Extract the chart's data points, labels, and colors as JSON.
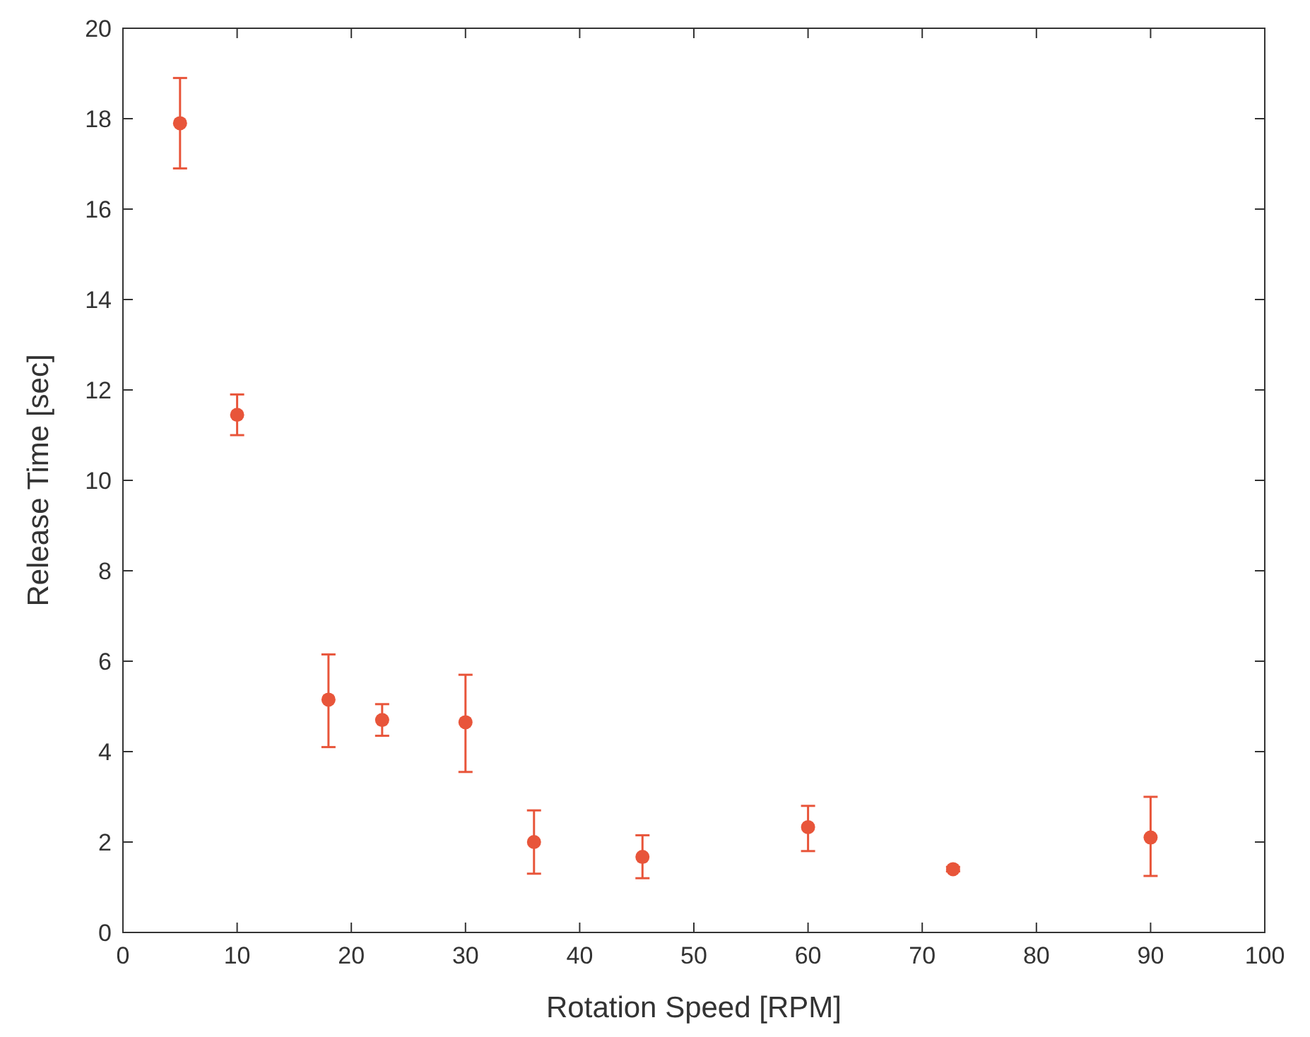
{
  "chart_data": {
    "type": "scatter",
    "xlabel": "Rotation Speed [RPM]",
    "ylabel": "Release Time [sec]",
    "x": [
      5,
      10,
      18,
      22.7,
      30,
      36,
      45.5,
      60,
      72.7,
      90
    ],
    "series": [
      {
        "color": "#e8553a",
        "values": [
          17.9,
          11.45,
          5.15,
          4.7,
          4.65,
          2.0,
          1.67,
          2.33,
          1.4,
          2.1
        ],
        "errors": [
          [
            16.9,
            18.9
          ],
          [
            11.0,
            11.9
          ],
          [
            4.1,
            6.15
          ],
          [
            4.35,
            5.05
          ],
          [
            3.55,
            5.7
          ],
          [
            1.3,
            2.7
          ],
          [
            1.2,
            2.15
          ],
          [
            1.8,
            2.8
          ],
          [
            1.35,
            1.45
          ],
          [
            1.25,
            3.0
          ]
        ]
      }
    ],
    "xlim": [
      0,
      100
    ],
    "xticks": [
      0,
      10,
      20,
      30,
      40,
      50,
      60,
      70,
      80,
      90,
      100
    ],
    "ylim": [
      0,
      20
    ],
    "yticks": [
      0,
      2,
      4,
      6,
      8,
      10,
      12,
      14,
      16,
      18,
      20
    ],
    "marker": "circle",
    "grid": false
  }
}
